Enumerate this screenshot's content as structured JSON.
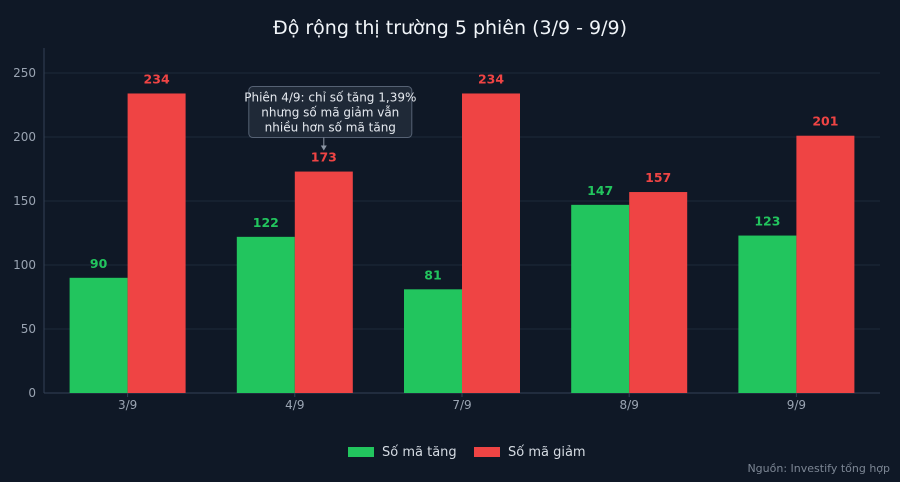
{
  "chart_data": {
    "type": "bar",
    "title": "Độ rộng thị trường 5 phiên (3/9 - 9/9)",
    "categories": [
      "3/9",
      "4/9",
      "7/9",
      "8/9",
      "9/9"
    ],
    "series": [
      {
        "name": "Số mã tăng",
        "values": [
          90,
          122,
          81,
          147,
          123
        ],
        "color": "#22c55e"
      },
      {
        "name": "Số mã giảm",
        "values": [
          234,
          173,
          234,
          157,
          201
        ],
        "color": "#ef4444"
      }
    ],
    "ylim": [
      0,
      250
    ],
    "yticks": [
      0,
      50,
      100,
      150,
      200,
      250
    ],
    "grid": true,
    "legend": "bottom",
    "annotation": {
      "category": "4/9",
      "series": 1,
      "lines": [
        "Phiên 4/9: chỉ số tăng 1,39%",
        "nhưng số mã giảm vẫn",
        "nhiều hơn số mã tăng"
      ]
    }
  },
  "source": "Nguồn: Investify tổng hợp",
  "colors": {
    "background": "#0f1826",
    "grid": "#1e2a3a",
    "axis": "#334155"
  }
}
